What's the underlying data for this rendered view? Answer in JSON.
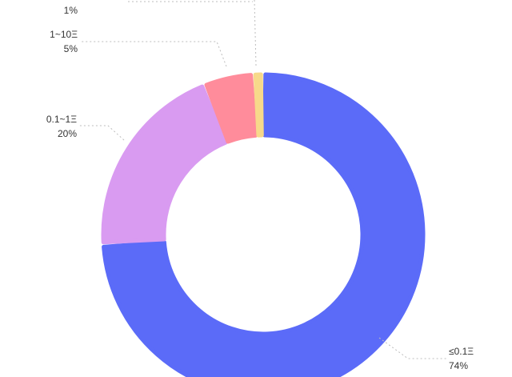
{
  "chart_data": {
    "type": "pie",
    "variant": "donut",
    "categories": [
      "≤0.1Ξ",
      "0.1~1Ξ",
      "1~10Ξ",
      "",
      ""
    ],
    "values": [
      74,
      20,
      5,
      1,
      0
    ],
    "value_labels": [
      "74%",
      "20%",
      "5%",
      "1%",
      ""
    ],
    "colors": [
      "#5b6bf8",
      "#d99bf1",
      "#ff8c9b",
      "#f7d98a",
      "#d9d9d9"
    ],
    "legend": "none",
    "labels_position": "outside-with-leader-lines"
  }
}
